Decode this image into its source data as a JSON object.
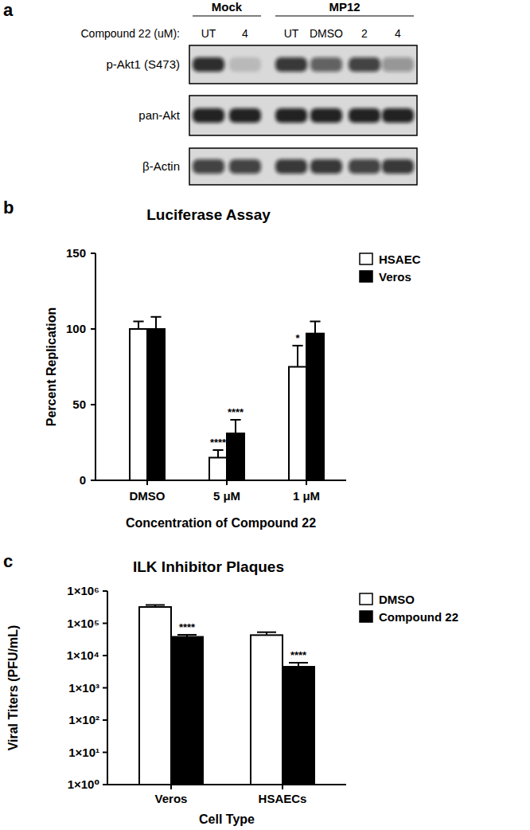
{
  "blot": {
    "panel_label": "a",
    "treatment_label": "Compound 22 (uM):",
    "lanes": [
      "UT",
      "4",
      "UT",
      "DMSO",
      "2",
      "4"
    ],
    "groups": [
      {
        "label": "Mock",
        "lane_count": 2
      },
      {
        "label": "MP12",
        "lane_count": 4
      }
    ],
    "rows": [
      {
        "label": "p-Akt1 (S473)",
        "intensities": [
          0.85,
          0.15,
          0.8,
          0.6,
          0.75,
          0.35
        ]
      },
      {
        "label": "pan-Akt",
        "intensities": [
          0.9,
          0.9,
          0.9,
          0.9,
          0.9,
          0.9
        ]
      },
      {
        "label": "β-Actin",
        "intensities": [
          0.75,
          0.75,
          0.8,
          0.8,
          0.75,
          0.8
        ]
      }
    ]
  },
  "chart_data": [
    {
      "type": "bar",
      "panel_label": "b",
      "title": "Luciferase Assay",
      "y_label": "Percent Replication",
      "x_label": "Concentration of Compound 22",
      "categories": [
        "DMSO",
        "5 μM",
        "1 μM"
      ],
      "series": [
        {
          "name": "HSAEC",
          "color": "#ffffff",
          "values": [
            100,
            15,
            75
          ],
          "errors": [
            5,
            5,
            14
          ],
          "significance": [
            null,
            "****",
            "*"
          ]
        },
        {
          "name": "Veros",
          "color": "#000000",
          "values": [
            100,
            31,
            97
          ],
          "errors": [
            8,
            9,
            8
          ],
          "significance": [
            null,
            "****",
            null
          ]
        }
      ],
      "ylim": [
        0,
        150
      ],
      "yticks": [
        0,
        50,
        100,
        150
      ],
      "legend": "right"
    },
    {
      "type": "bar",
      "panel_label": "c",
      "title": "ILK Inhibitor Plaques",
      "y_label": "Viral Titers (PFU/mL)",
      "x_label": "Cell Type",
      "categories": [
        "Veros",
        "HSAECs"
      ],
      "series": [
        {
          "name": "DMSO",
          "color": "#ffffff",
          "values": [
            320000,
            43000
          ],
          "errors": [
            50000,
            10000
          ],
          "significance": [
            null,
            null
          ]
        },
        {
          "name": "Compound 22",
          "color": "#000000",
          "values": [
            38000,
            4500
          ],
          "errors": [
            6000,
            1500
          ],
          "significance": [
            "****",
            "****"
          ]
        }
      ],
      "log": "y",
      "ylim": [
        1,
        1000000
      ],
      "yticks": [
        {
          "value": 1,
          "label": "1×10⁰"
        },
        {
          "value": 10,
          "label": "1×10¹"
        },
        {
          "value": 100,
          "label": "1×10²"
        },
        {
          "value": 1000,
          "label": "1×10³"
        },
        {
          "value": 10000,
          "label": "1×10⁴"
        },
        {
          "value": 100000,
          "label": "1×10⁵"
        },
        {
          "value": 1000000,
          "label": "1×10⁶"
        }
      ],
      "legend": "right"
    }
  ]
}
